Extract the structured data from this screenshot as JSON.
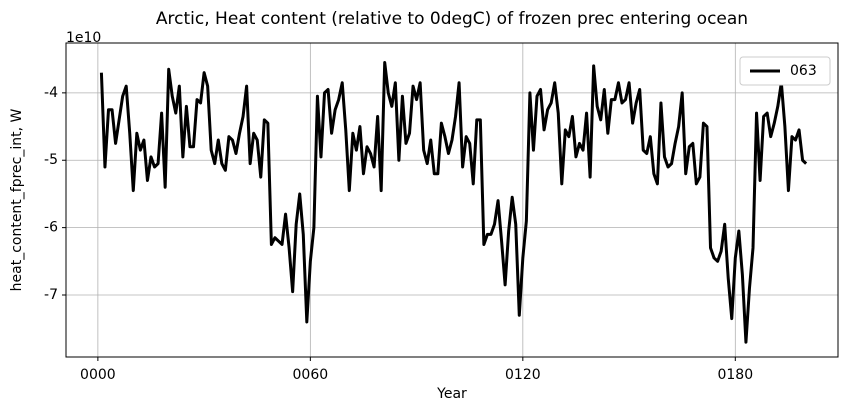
{
  "chart_data": {
    "type": "line",
    "title": "Arctic, Heat content (relative to 0degC) of frozen prec entering ocean",
    "xlabel": "Year",
    "ylabel": "heat_content_fprec_int, W",
    "y_offset_label": "1e10",
    "xlim": [
      -9,
      209
    ],
    "ylim": [
      -7.92,
      -3.26
    ],
    "xticks": [
      {
        "value": 0,
        "label": "0000"
      },
      {
        "value": 60,
        "label": "0060"
      },
      {
        "value": 120,
        "label": "0120"
      },
      {
        "value": 180,
        "label": "0180"
      }
    ],
    "yticks": [
      -7,
      -6,
      -5,
      -4
    ],
    "grid": true,
    "legend": "upper right",
    "x": [
      1,
      2,
      3,
      4,
      5,
      6,
      7,
      8,
      9,
      10,
      11,
      12,
      13,
      14,
      15,
      16,
      17,
      18,
      19,
      20,
      21,
      22,
      23,
      24,
      25,
      26,
      27,
      28,
      29,
      30,
      31,
      32,
      33,
      34,
      35,
      36,
      37,
      38,
      39,
      40,
      41,
      42,
      43,
      44,
      45,
      46,
      47,
      48,
      49,
      50,
      51,
      52,
      53,
      54,
      55,
      56,
      57,
      58,
      59,
      60,
      61,
      62,
      63,
      64,
      65,
      66,
      67,
      68,
      69,
      70,
      71,
      72,
      73,
      74,
      75,
      76,
      77,
      78,
      79,
      80,
      81,
      82,
      83,
      84,
      85,
      86,
      87,
      88,
      89,
      90,
      91,
      92,
      93,
      94,
      95,
      96,
      97,
      98,
      99,
      100,
      101,
      102,
      103,
      104,
      105,
      106,
      107,
      108,
      109,
      110,
      111,
      112,
      113,
      114,
      115,
      116,
      117,
      118,
      119,
      120,
      121,
      122,
      123,
      124,
      125,
      126,
      127,
      128,
      129,
      130,
      131,
      132,
      133,
      134,
      135,
      136,
      137,
      138,
      139,
      140,
      141,
      142,
      143,
      144,
      145,
      146,
      147,
      148,
      149,
      150,
      151,
      152,
      153,
      154,
      155,
      156,
      157,
      158,
      159,
      160,
      161,
      162,
      163,
      164,
      165,
      166,
      167,
      168,
      169,
      170,
      171,
      172,
      173,
      174,
      175,
      176,
      177,
      178,
      179,
      180,
      181,
      182,
      183,
      184,
      185,
      186,
      187,
      188,
      189,
      190,
      191,
      192,
      193,
      194,
      195,
      196,
      197,
      198,
      199,
      200
    ],
    "series": [
      {
        "name": "063",
        "color": "#000000",
        "values": [
          -3.7,
          -5.1,
          -4.25,
          -4.25,
          -4.75,
          -4.4,
          -4.05,
          -3.9,
          -4.6,
          -5.45,
          -4.6,
          -4.85,
          -4.7,
          -5.3,
          -4.95,
          -5.1,
          -5.05,
          -4.3,
          -5.4,
          -3.65,
          -4.05,
          -4.3,
          -3.9,
          -4.95,
          -4.2,
          -4.8,
          -4.8,
          -4.1,
          -4.15,
          -3.7,
          -3.9,
          -4.85,
          -5.05,
          -4.7,
          -5.05,
          -5.15,
          -4.65,
          -4.7,
          -4.9,
          -4.6,
          -4.35,
          -3.9,
          -5.05,
          -4.6,
          -4.7,
          -5.25,
          -4.4,
          -4.45,
          -6.25,
          -6.15,
          -6.2,
          -6.25,
          -5.8,
          -6.3,
          -6.95,
          -5.95,
          -5.5,
          -6.1,
          -7.4,
          -6.5,
          -6.0,
          -4.05,
          -4.95,
          -4.0,
          -3.95,
          -4.6,
          -4.25,
          -4.1,
          -3.85,
          -4.55,
          -5.45,
          -4.6,
          -4.85,
          -4.5,
          -5.2,
          -4.8,
          -4.9,
          -5.1,
          -4.35,
          -5.45,
          -3.55,
          -4.0,
          -4.2,
          -3.85,
          -5.0,
          -4.05,
          -4.75,
          -4.6,
          -3.9,
          -4.1,
          -3.85,
          -4.85,
          -5.05,
          -4.7,
          -5.2,
          -5.2,
          -4.45,
          -4.65,
          -4.9,
          -4.7,
          -4.35,
          -3.85,
          -5.1,
          -4.65,
          -4.75,
          -5.35,
          -4.4,
          -4.4,
          -6.25,
          -6.1,
          -6.1,
          -5.95,
          -5.6,
          -6.2,
          -6.85,
          -6.05,
          -5.55,
          -5.95,
          -7.3,
          -6.45,
          -5.9,
          -4.0,
          -4.85,
          -4.05,
          -3.95,
          -4.55,
          -4.25,
          -4.15,
          -3.85,
          -4.3,
          -5.35,
          -4.55,
          -4.65,
          -4.35,
          -4.95,
          -4.75,
          -4.85,
          -4.3,
          -5.25,
          -3.6,
          -4.2,
          -4.4,
          -3.95,
          -4.6,
          -4.1,
          -4.1,
          -3.85,
          -4.15,
          -4.1,
          -3.85,
          -4.45,
          -4.15,
          -3.95,
          -4.85,
          -4.9,
          -4.65,
          -5.2,
          -5.35,
          -4.15,
          -4.95,
          -5.1,
          -5.05,
          -4.75,
          -4.5,
          -4.0,
          -5.2,
          -4.8,
          -4.75,
          -5.35,
          -5.25,
          -4.45,
          -4.5,
          -6.3,
          -6.45,
          -6.5,
          -6.35,
          -5.95,
          -6.75,
          -7.35,
          -6.45,
          -6.05,
          -6.7,
          -7.7,
          -6.9,
          -6.3,
          -4.3,
          -5.3,
          -4.35,
          -4.3,
          -4.65,
          -4.45,
          -4.2,
          -3.85,
          -4.5,
          -5.45,
          -4.65,
          -4.7,
          -4.55,
          -5.0,
          -5.05
        ]
      }
    ]
  }
}
